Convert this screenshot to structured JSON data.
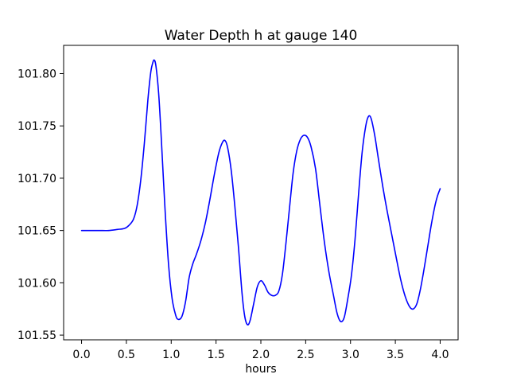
{
  "figure": {
    "background": "#ffffff"
  },
  "chart_data": {
    "type": "line",
    "title": "Water Depth h at gauge 140",
    "xlabel": "hours",
    "ylabel": "",
    "grid": false,
    "legend_position": "none",
    "line_color": "#0000ff",
    "axis_color": "#000000",
    "x_tick_labels": [
      "0.0",
      "0.5",
      "1.0",
      "1.5",
      "2.0",
      "2.5",
      "3.0",
      "3.5",
      "4.0"
    ],
    "y_tick_labels": [
      "101.55",
      "101.60",
      "101.65",
      "101.70",
      "101.75",
      "101.80"
    ],
    "xlim": [
      -0.2,
      4.2
    ],
    "ylim": [
      101.5455,
      101.827
    ],
    "series": [
      {
        "name": "water-depth-h",
        "points": [
          [
            0.0,
            101.65
          ],
          [
            0.1,
            101.65
          ],
          [
            0.2,
            101.65
          ],
          [
            0.3,
            101.65
          ],
          [
            0.4,
            101.651
          ],
          [
            0.48,
            101.652
          ],
          [
            0.53,
            101.655
          ],
          [
            0.58,
            101.661
          ],
          [
            0.62,
            101.674
          ],
          [
            0.66,
            101.698
          ],
          [
            0.7,
            101.733
          ],
          [
            0.74,
            101.775
          ],
          [
            0.77,
            101.8
          ],
          [
            0.79,
            101.809
          ],
          [
            0.81,
            101.813
          ],
          [
            0.83,
            101.807
          ],
          [
            0.86,
            101.781
          ],
          [
            0.89,
            101.737
          ],
          [
            0.93,
            101.672
          ],
          [
            0.97,
            101.618
          ],
          [
            1.01,
            101.585
          ],
          [
            1.05,
            101.569
          ],
          [
            1.08,
            101.565
          ],
          [
            1.12,
            101.568
          ],
          [
            1.16,
            101.582
          ],
          [
            1.2,
            101.605
          ],
          [
            1.24,
            101.618
          ],
          [
            1.28,
            101.627
          ],
          [
            1.33,
            101.64
          ],
          [
            1.38,
            101.657
          ],
          [
            1.43,
            101.679
          ],
          [
            1.48,
            101.703
          ],
          [
            1.53,
            101.724
          ],
          [
            1.57,
            101.734
          ],
          [
            1.6,
            101.736
          ],
          [
            1.63,
            101.729
          ],
          [
            1.67,
            101.707
          ],
          [
            1.71,
            101.673
          ],
          [
            1.75,
            101.634
          ],
          [
            1.79,
            101.59
          ],
          [
            1.82,
            101.568
          ],
          [
            1.85,
            101.56
          ],
          [
            1.88,
            101.564
          ],
          [
            1.92,
            101.58
          ],
          [
            1.96,
            101.596
          ],
          [
            2.0,
            101.602
          ],
          [
            2.04,
            101.598
          ],
          [
            2.08,
            101.591
          ],
          [
            2.12,
            101.588
          ],
          [
            2.16,
            101.588
          ],
          [
            2.2,
            101.592
          ],
          [
            2.24,
            101.608
          ],
          [
            2.28,
            101.638
          ],
          [
            2.32,
            101.672
          ],
          [
            2.36,
            101.705
          ],
          [
            2.4,
            101.726
          ],
          [
            2.44,
            101.737
          ],
          [
            2.48,
            101.741
          ],
          [
            2.52,
            101.739
          ],
          [
            2.56,
            101.73
          ],
          [
            2.61,
            101.709
          ],
          [
            2.66,
            101.673
          ],
          [
            2.71,
            101.638
          ],
          [
            2.76,
            101.61
          ],
          [
            2.81,
            101.588
          ],
          [
            2.85,
            101.571
          ],
          [
            2.89,
            101.563
          ],
          [
            2.93,
            101.567
          ],
          [
            2.97,
            101.585
          ],
          [
            3.01,
            101.607
          ],
          [
            3.05,
            101.641
          ],
          [
            3.09,
            101.685
          ],
          [
            3.13,
            101.725
          ],
          [
            3.17,
            101.75
          ],
          [
            3.2,
            101.759
          ],
          [
            3.23,
            101.757
          ],
          [
            3.27,
            101.741
          ],
          [
            3.31,
            101.719
          ],
          [
            3.36,
            101.692
          ],
          [
            3.41,
            101.668
          ],
          [
            3.46,
            101.646
          ],
          [
            3.51,
            101.624
          ],
          [
            3.56,
            101.603
          ],
          [
            3.61,
            101.587
          ],
          [
            3.66,
            101.577
          ],
          [
            3.7,
            101.575
          ],
          [
            3.74,
            101.58
          ],
          [
            3.78,
            101.594
          ],
          [
            3.82,
            101.613
          ],
          [
            3.86,
            101.634
          ],
          [
            3.9,
            101.655
          ],
          [
            3.94,
            101.673
          ],
          [
            3.97,
            101.683
          ],
          [
            4.0,
            101.69
          ]
        ]
      }
    ]
  }
}
